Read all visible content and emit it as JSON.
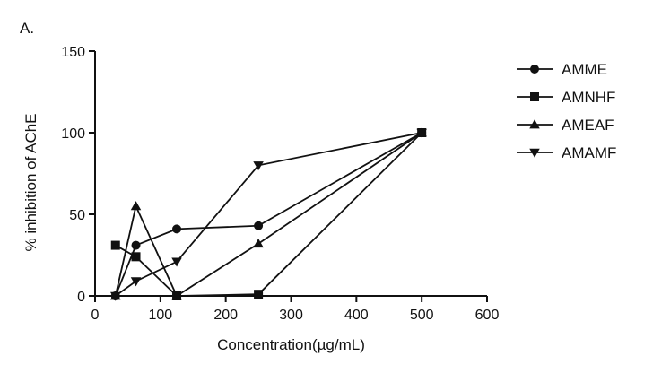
{
  "panel_label": "A.",
  "chart_data": {
    "type": "line",
    "xlabel": "Concentration(µg/mL)",
    "ylabel": "% inhibition of AChE",
    "xlim": [
      0,
      600
    ],
    "ylim": [
      0,
      150
    ],
    "x_ticks": [
      0,
      100,
      200,
      300,
      400,
      500,
      600
    ],
    "y_ticks": [
      0,
      50,
      100,
      150
    ],
    "legend_position": "right",
    "grid": false,
    "series": [
      {
        "name": "AMME",
        "marker": "circle",
        "x": [
          31.25,
          62.5,
          125,
          250,
          500
        ],
        "y": [
          0,
          31,
          41,
          43,
          100
        ]
      },
      {
        "name": "AMNHF",
        "marker": "square",
        "x": [
          31.25,
          62.5,
          125,
          250,
          500
        ],
        "y": [
          31,
          24,
          0,
          1,
          100
        ]
      },
      {
        "name": "AMEAF",
        "marker": "triangle-up",
        "x": [
          31.25,
          62.5,
          125,
          250,
          500
        ],
        "y": [
          0,
          55,
          0,
          32,
          100
        ]
      },
      {
        "name": "AMAMF",
        "marker": "triangle-down",
        "x": [
          31.25,
          62.5,
          125,
          250,
          500
        ],
        "y": [
          0,
          9,
          21,
          80,
          100
        ]
      }
    ]
  }
}
